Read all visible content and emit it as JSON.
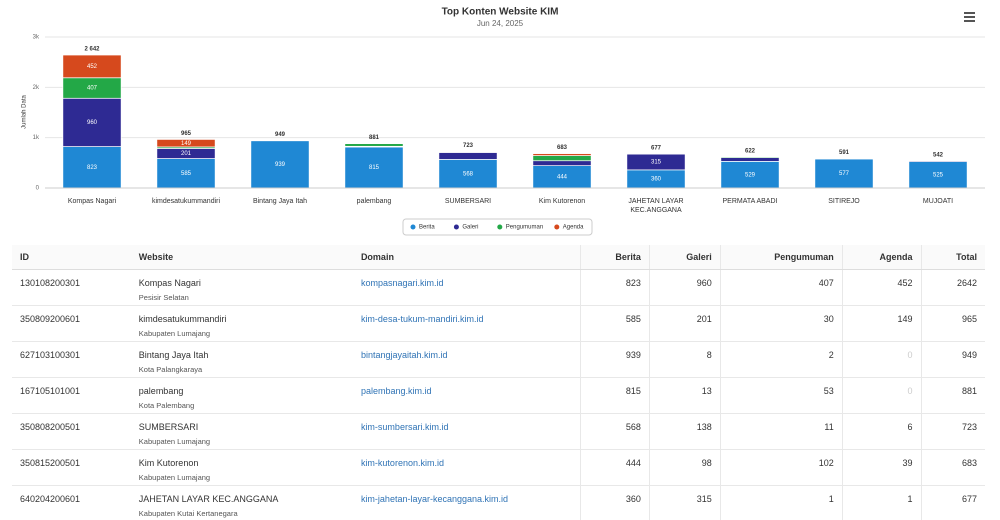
{
  "chart_data": {
    "type": "stacked_bar",
    "title": "Top Konten Website KIM",
    "subtitle": "Jun 24, 2025",
    "y_label": "Jumlah Data",
    "categories": [
      "Kompas Nagari",
      "kimdesatukummandiri",
      "Bintang Jaya Itah",
      "palembang",
      "SUMBERSARI",
      "Kim Kutorenon",
      "JAHETAN LAYAR KEC.ANGGANA",
      "PERMATA ABADI",
      "SITIREJO",
      "MUJOATI"
    ],
    "series": [
      {
        "name": "Berita",
        "color": "#1f88d4",
        "values": [
          823,
          585,
          939,
          815,
          568,
          444,
          360,
          529,
          577,
          525
        ]
      },
      {
        "name": "Galeri",
        "color": "#2e2a93",
        "values": [
          960,
          201,
          8,
          13,
          138,
          98,
          315,
          75,
          13,
          17
        ]
      },
      {
        "name": "Pengumuman",
        "color": "#23a847",
        "values": [
          407,
          30,
          2,
          53,
          11,
          102,
          1,
          18,
          1,
          0
        ]
      },
      {
        "name": "Agenda",
        "color": "#d6491d",
        "values": [
          452,
          149,
          0,
          0,
          6,
          39,
          1,
          0,
          0,
          0
        ]
      }
    ],
    "stack_totals": [
      2642,
      965,
      949,
      881,
      723,
      683,
      677,
      622,
      591,
      542
    ],
    "stack_total_labels": [
      "2 642",
      "965",
      "949",
      "881",
      "723",
      "683",
      "677",
      "622",
      "591",
      "542"
    ],
    "ylim": [
      0,
      3000
    ],
    "yticks": [
      0,
      {
        "value": 1000,
        "label": "1k"
      },
      {
        "value": 2000,
        "label": "2k"
      },
      {
        "value": 3000,
        "label": "3k"
      }
    ],
    "grid": true,
    "legend": "bottom"
  },
  "table": {
    "headers": [
      "ID",
      "Website",
      "Domain",
      "Berita",
      "Galeri",
      "Pengumuman",
      "Agenda",
      "Total"
    ],
    "rows": [
      {
        "id": "130108200301",
        "website": "Kompas Nagari",
        "region": "Pesisir Selatan",
        "domain": "kompasnagari.kim.id",
        "numbers": [
          823,
          960,
          407,
          452,
          2642
        ]
      },
      {
        "id": "350809200601",
        "website": "kimdesatukummandiri",
        "region": "Kabupaten Lumajang",
        "domain": "kim-desa-tukum-mandiri.kim.id",
        "numbers": [
          585,
          201,
          30,
          149,
          965
        ]
      },
      {
        "id": "627103100301",
        "website": "Bintang Jaya Itah",
        "region": "Kota Palangkaraya",
        "domain": "bintangjayaitah.kim.id",
        "numbers": [
          939,
          8,
          2,
          0,
          949
        ]
      },
      {
        "id": "167105101001",
        "website": "palembang",
        "region": "Kota Palembang",
        "domain": "palembang.kim.id",
        "numbers": [
          815,
          13,
          53,
          0,
          881
        ]
      },
      {
        "id": "350808200501",
        "website": "SUMBERSARI",
        "region": "Kabupaten Lumajang",
        "domain": "kim-sumbersari.kim.id",
        "numbers": [
          568,
          138,
          11,
          6,
          723
        ]
      },
      {
        "id": "350815200501",
        "website": "Kim Kutorenon",
        "region": "Kabupaten Lumajang",
        "domain": "kim-kutorenon.kim.id",
        "numbers": [
          444,
          98,
          102,
          39,
          683
        ]
      },
      {
        "id": "640204200601",
        "website": "JAHETAN LAYAR KEC.ANGGANA",
        "region": "Kabupaten Kutai Kertanegara",
        "domain": "kim-jahetan-layar-kecanggana.kim.id",
        "numbers": [
          360,
          315,
          1,
          1,
          677
        ]
      }
    ]
  }
}
